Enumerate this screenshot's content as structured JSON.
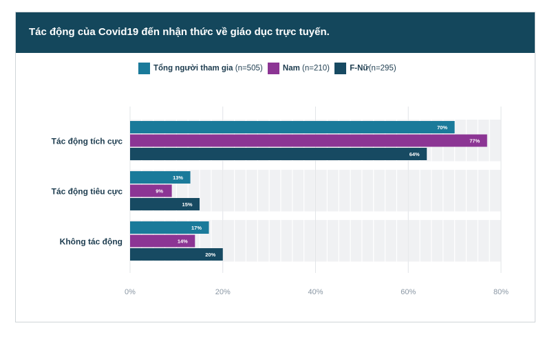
{
  "header": {
    "title": "Tác động của Covid19 đến nhận thức về giáo dục trực tuyến."
  },
  "legend": [
    {
      "name": "Tổng người tham gia",
      "n": "(n=505)"
    },
    {
      "name": "Nam",
      "n": "(n=210)"
    },
    {
      "name": "F-Nữ",
      "n": "(n=295)"
    }
  ],
  "colors": {
    "series0": "#1a7a9a",
    "series1": "#8c3594",
    "series2": "#174a62",
    "header": "#14475c"
  },
  "chart_data": {
    "type": "bar",
    "orientation": "horizontal",
    "categories": [
      "Tác động tích cực",
      "Tác động tiêu cực",
      "Không tác động"
    ],
    "series": [
      {
        "name": "Tổng người tham gia",
        "values": [
          70,
          13,
          17
        ],
        "labels": [
          "70%",
          "13%",
          "17%"
        ]
      },
      {
        "name": "Nam",
        "values": [
          77,
          9,
          14
        ],
        "labels": [
          "77%",
          "9%",
          "14%"
        ]
      },
      {
        "name": "F-Nữ",
        "values": [
          64,
          15,
          20
        ],
        "labels": [
          "64%",
          "15%",
          "20%"
        ]
      }
    ],
    "xlim": [
      0,
      80
    ],
    "xticks": [
      "0%",
      "20%",
      "40%",
      "60%",
      "80%"
    ],
    "grid": true,
    "legend_position": "top"
  }
}
